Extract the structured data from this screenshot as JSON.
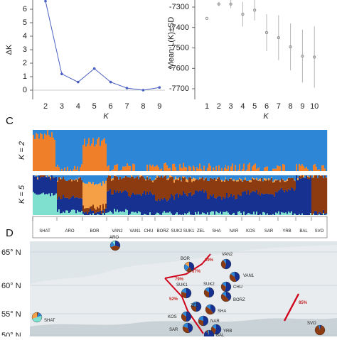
{
  "panels": {
    "C": "C",
    "D": "D"
  },
  "deltaK": {
    "type": "line",
    "ylabel": "ΔK",
    "xlabel": "K",
    "x": [
      2,
      3,
      4,
      5,
      6,
      7,
      8,
      9
    ],
    "y": [
      6.6,
      1.2,
      0.6,
      1.6,
      0.6,
      0.15,
      0.0,
      0.2
    ],
    "yticks": [
      "0",
      "1",
      "2",
      "3",
      "4",
      "5",
      "6"
    ],
    "ylim": [
      -0.4,
      6.9
    ],
    "color": "#4a5fc1"
  },
  "meanL": {
    "type": "scatter",
    "ylabel": "Mean L(K)±SD",
    "xlabel": "K",
    "x": [
      1,
      2,
      3,
      4,
      5,
      6,
      7,
      8,
      9,
      10
    ],
    "mean": [
      -7355,
      -7285,
      -7285,
      -7335,
      -7315,
      -7425,
      -7450,
      -7495,
      -7540,
      -7545
    ],
    "sd": [
      0,
      10,
      20,
      60,
      50,
      90,
      110,
      115,
      130,
      150
    ],
    "yticks": [
      "-7300",
      "-7400",
      "-7500",
      "-7600",
      "-7700"
    ],
    "ylim": [
      -7720,
      -7240
    ],
    "color": "#8a8a8a"
  },
  "structure": {
    "type": "bar",
    "rows": [
      "K = 2",
      "K = 5"
    ],
    "populations": [
      "SHAT",
      "ARO",
      "BOR",
      "VAN2",
      "VAN1",
      "CHU",
      "BORZ",
      "SUK2",
      "SUK1",
      "ZEL",
      "SHA",
      "NAR",
      "KOS",
      "SAR",
      "YRB",
      "BAL",
      "SVO"
    ],
    "colors": {
      "blue": "#2e86d6",
      "orange": "#f07f2a",
      "navy": "#16318f",
      "brown": "#8c3a10",
      "cyan": "#7fe0d0",
      "light_orange": "#f5a046"
    }
  },
  "map": {
    "type": "map",
    "lat_labels": [
      "65° N",
      "60° N",
      "55° N",
      "50° N"
    ],
    "sites": [
      "BOR",
      "VAN2",
      "VAN1",
      "ARO",
      "CHU",
      "SUK1",
      "SUK2",
      "BORZ",
      "ZEL",
      "SHA",
      "KOS",
      "NAR",
      "SAR",
      "YRB",
      "BAL",
      "SHAT",
      "SVO"
    ],
    "percentages": [
      "69%",
      "67%",
      "79%",
      "52%",
      "85%"
    ]
  }
}
